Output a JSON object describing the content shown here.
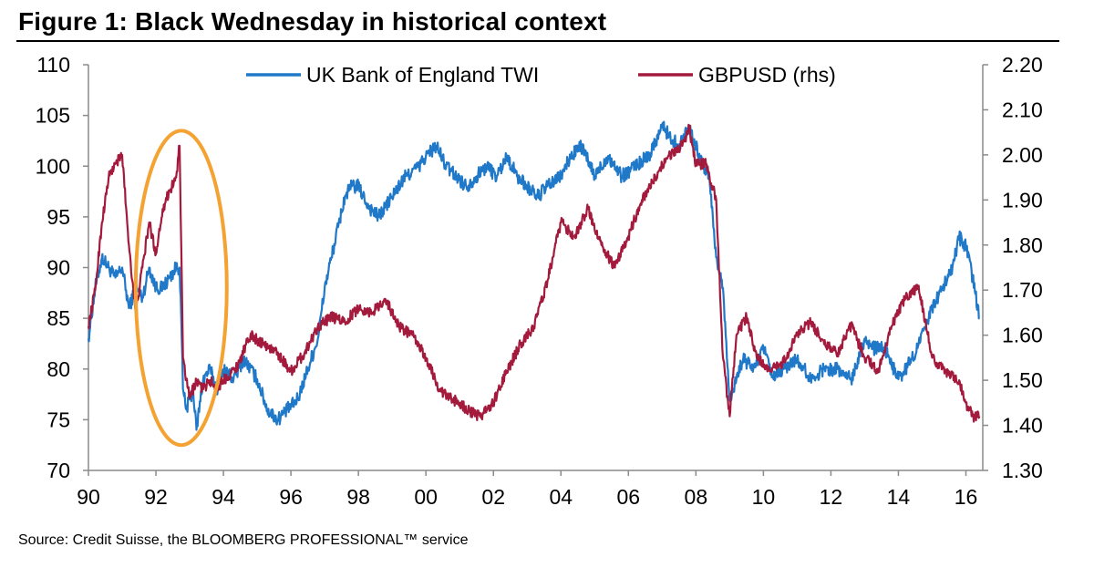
{
  "title": "Figure 1: Black Wednesday in historical context",
  "source": "Source: Credit Suisse, the BLOOMBERG PROFESSIONAL™ service",
  "chart_data": {
    "type": "line",
    "title": "Figure 1: Black Wednesday in historical context",
    "x_tick_labels": [
      "90",
      "92",
      "94",
      "96",
      "98",
      "00",
      "02",
      "04",
      "06",
      "08",
      "10",
      "12",
      "14",
      "16"
    ],
    "x_tick_years": [
      1990,
      1992,
      1994,
      1996,
      1998,
      2000,
      2002,
      2004,
      2006,
      2008,
      2010,
      2012,
      2014,
      2016
    ],
    "xlim": [
      1990,
      2016.5
    ],
    "y_left": {
      "ylim": [
        70,
        110
      ],
      "ticks": [
        70,
        75,
        80,
        85,
        90,
        95,
        100,
        105,
        110
      ]
    },
    "y_right": {
      "ylim": [
        1.3,
        2.2
      ],
      "ticks": [
        "1.30",
        "1.40",
        "1.50",
        "1.60",
        "1.70",
        "1.80",
        "1.90",
        "2.00",
        "2.10",
        "2.20"
      ]
    },
    "legend_position": "top-center",
    "grid": false,
    "annotation": {
      "type": "ellipse",
      "color": "#F4A232",
      "x_range": [
        1991.4,
        1994.1
      ],
      "y_range_left": [
        72.5,
        103.5
      ]
    },
    "series": [
      {
        "name": "UK Bank of England TWI",
        "axis": "left",
        "color": "#1F78C8",
        "x": [
          1990.0,
          1990.2,
          1990.4,
          1990.6,
          1990.8,
          1991.0,
          1991.2,
          1991.4,
          1991.6,
          1991.8,
          1992.0,
          1992.2,
          1992.4,
          1992.6,
          1992.7,
          1992.75,
          1992.8,
          1992.9,
          1993.0,
          1993.1,
          1993.2,
          1993.4,
          1993.6,
          1993.8,
          1994.0,
          1994.3,
          1994.6,
          1995.0,
          1995.3,
          1995.6,
          1995.9,
          1996.2,
          1996.5,
          1996.8,
          1997.0,
          1997.2,
          1997.4,
          1997.6,
          1997.8,
          1998.0,
          1998.3,
          1998.6,
          1999.0,
          1999.4,
          1999.8,
          2000.0,
          2000.3,
          2000.6,
          2000.9,
          2001.2,
          2001.5,
          2001.8,
          2002.1,
          2002.4,
          2002.7,
          2003.0,
          2003.3,
          2003.6,
          2004.0,
          2004.3,
          2004.6,
          2005.0,
          2005.4,
          2005.8,
          2006.2,
          2006.6,
          2007.0,
          2007.2,
          2007.5,
          2007.8,
          2008.0,
          2008.2,
          2008.4,
          2008.6,
          2008.8,
          2009.0,
          2009.2,
          2009.4,
          2009.7,
          2010.0,
          2010.3,
          2010.6,
          2011.0,
          2011.4,
          2011.8,
          2012.2,
          2012.6,
          2013.0,
          2013.3,
          2013.6,
          2014.0,
          2014.4,
          2014.8,
          2015.0,
          2015.3,
          2015.6,
          2015.8,
          2016.0,
          2016.2,
          2016.4
        ],
        "values": [
          83,
          88,
          91,
          90,
          89,
          90,
          86,
          88,
          87,
          90,
          88,
          88,
          89,
          90,
          90,
          85,
          78,
          76,
          77,
          78,
          74,
          79,
          80,
          78,
          80,
          79,
          81,
          79,
          76,
          75,
          76,
          77,
          80,
          83,
          88,
          91,
          94,
          97,
          98,
          98,
          96,
          95,
          97,
          99,
          100,
          101,
          102,
          100,
          99,
          98,
          99,
          100,
          99,
          101,
          99,
          98,
          97,
          98,
          99,
          101,
          102,
          99,
          101,
          99,
          100,
          101,
          104,
          103,
          102,
          104,
          102,
          100,
          99,
          91,
          88,
          77,
          79,
          81,
          80,
          82,
          79,
          80,
          81,
          79,
          80,
          80,
          79,
          83,
          82,
          82,
          79,
          81,
          84,
          86,
          88,
          90,
          93,
          92,
          89,
          85
        ]
      },
      {
        "name": "GBPUSD (rhs)",
        "axis": "right",
        "color": "#A31A3D",
        "x": [
          1990.0,
          1990.2,
          1990.4,
          1990.6,
          1990.8,
          1991.0,
          1991.2,
          1991.4,
          1991.6,
          1991.8,
          1992.0,
          1992.2,
          1992.4,
          1992.6,
          1992.7,
          1992.75,
          1992.8,
          1992.9,
          1993.0,
          1993.2,
          1993.4,
          1993.6,
          1993.8,
          1994.0,
          1994.4,
          1994.8,
          1995.2,
          1995.6,
          1996.0,
          1996.4,
          1996.8,
          1997.2,
          1997.6,
          1998.0,
          1998.4,
          1998.8,
          1999.2,
          1999.6,
          2000.0,
          2000.4,
          2000.7,
          2001.0,
          2001.3,
          2001.6,
          2002.0,
          2002.4,
          2002.8,
          2003.2,
          2003.6,
          2004.0,
          2004.4,
          2004.8,
          2005.2,
          2005.6,
          2006.0,
          2006.4,
          2006.8,
          2007.2,
          2007.6,
          2007.8,
          2008.0,
          2008.3,
          2008.6,
          2008.8,
          2009.0,
          2009.2,
          2009.5,
          2009.8,
          2010.2,
          2010.6,
          2011.0,
          2011.4,
          2011.8,
          2012.2,
          2012.6,
          2013.0,
          2013.4,
          2013.8,
          2014.2,
          2014.6,
          2015.0,
          2015.4,
          2015.8,
          2016.0,
          2016.2,
          2016.4
        ],
        "values": [
          1.62,
          1.7,
          1.85,
          1.95,
          1.98,
          2.0,
          1.8,
          1.65,
          1.75,
          1.85,
          1.78,
          1.88,
          1.92,
          1.95,
          2.02,
          1.8,
          1.55,
          1.5,
          1.46,
          1.5,
          1.48,
          1.5,
          1.48,
          1.5,
          1.53,
          1.6,
          1.58,
          1.56,
          1.52,
          1.56,
          1.62,
          1.64,
          1.63,
          1.66,
          1.65,
          1.68,
          1.62,
          1.6,
          1.55,
          1.48,
          1.46,
          1.45,
          1.43,
          1.42,
          1.45,
          1.52,
          1.58,
          1.62,
          1.72,
          1.85,
          1.82,
          1.88,
          1.8,
          1.75,
          1.82,
          1.9,
          1.95,
          2.0,
          2.02,
          2.06,
          1.98,
          1.98,
          1.9,
          1.55,
          1.42,
          1.6,
          1.64,
          1.55,
          1.52,
          1.54,
          1.6,
          1.63,
          1.58,
          1.56,
          1.62,
          1.55,
          1.52,
          1.62,
          1.68,
          1.71,
          1.55,
          1.52,
          1.5,
          1.45,
          1.42,
          1.42
        ]
      }
    ]
  }
}
